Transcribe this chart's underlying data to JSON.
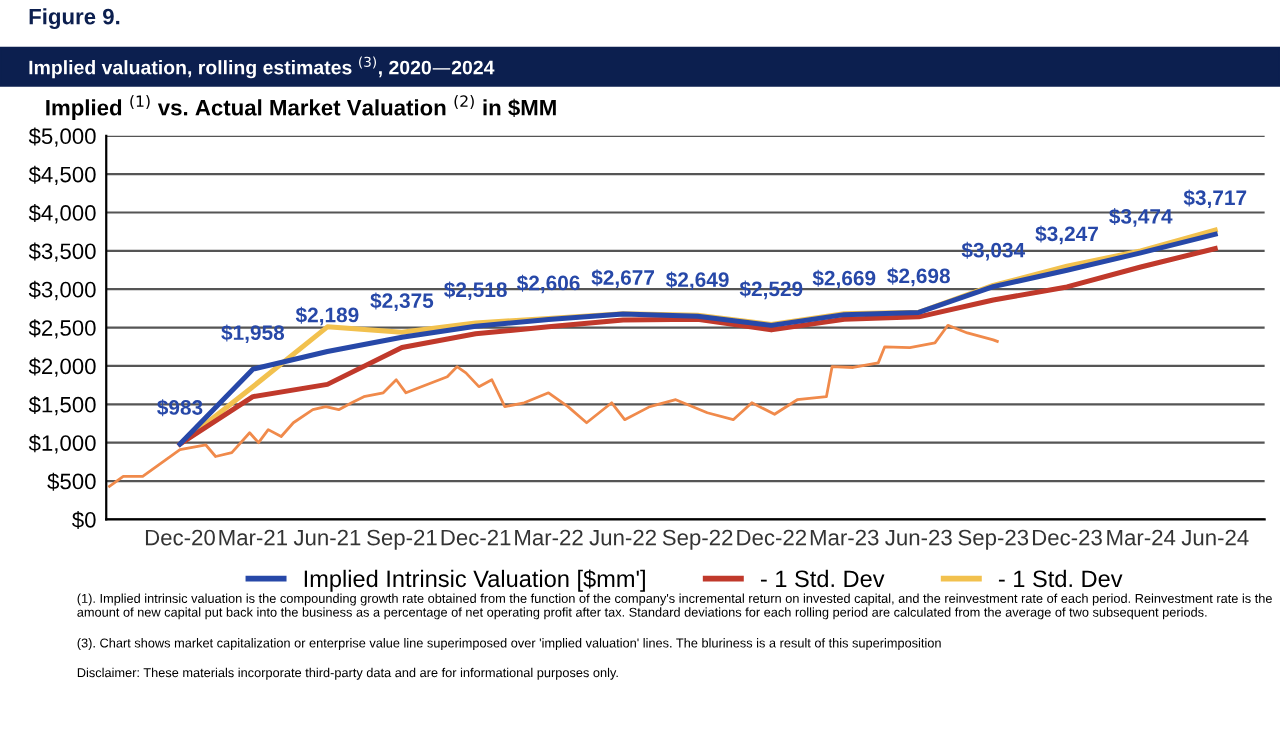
{
  "chart_data": {
    "type": "line",
    "title": "Implied valuation, rolling estimates $^{(3)}$, 2020—2024",
    "subtitle": "Implied $^{(1)}$ vs. Actual Market Valuation $^{(2)}$ in $MM",
    "annotations": [
      "Figure 9.",
      "(1). Implied intrinsic valuation is the compounding growth rate obtained from the function of the company's incremental return on invested capital, and the reinvestment rate of each period. Reinvestment rate is the amount of new capital put back into the business as a percentage of net operating profit after tax. Standard deviations for each rolling period are calculated from the average of two subsequent periods.",
      "(3). Chart shows market capitalization or enterprise value line superimposed over 'implied valuation' lines. The bluriness is a result of this superimposition",
      "Disclaimer: These materials incorporate third-party data and are for informational purposes only."
    ],
    "x": [
      "2020-12-15",
      "2021-03-15",
      "2021-06-15",
      "2021-09-15",
      "2021-12-15",
      "2022-03-15",
      "2022-06-15",
      "2022-09-15",
      "2022-12-15",
      "2023-03-15",
      "2023-06-15",
      "2023-09-15",
      "2023-12-15",
      "2024-03-15",
      "2024-06-15"
    ],
    "series": [
      {
        "name": "- 1 Std. Dev",
        "color": "#f2c14e",
        "values": [
          983,
          1730,
          2510,
          2440,
          2560,
          2620,
          2680,
          2660,
          2540,
          2680,
          2700,
          3050,
          3300,
          3500,
          3770
        ]
      },
      {
        "name": "- 1 Std. Dev",
        "color": "#c0392b",
        "values": [
          983,
          1600,
          1760,
          2240,
          2420,
          2510,
          2600,
          2610,
          2470,
          2610,
          2640,
          2860,
          3030,
          3290,
          3530
        ]
      },
      {
        "color": "#f08a4b",
        "x": [
          "2020-09-19",
          "2020-10-06",
          "2020-10-30",
          "2020-12-15",
          "2021-01-16",
          "2021-01-28",
          "2021-02-17",
          "2021-03-11",
          "2021-03-22",
          "2021-04-03",
          "2021-04-19",
          "2021-05-04",
          "2021-05-28",
          "2021-06-13",
          "2021-06-29",
          "2021-07-15",
          "2021-07-30",
          "2021-08-23",
          "2021-09-08",
          "2021-09-20",
          "2021-10-09",
          "2021-11-10",
          "2021-11-22",
          "2021-12-03",
          "2021-12-19",
          "2022-01-04",
          "2022-01-20",
          "2022-02-13",
          "2022-03-15",
          "2022-04-08",
          "2022-05-01",
          "2022-06-01",
          "2022-06-17",
          "2022-07-18",
          "2022-08-19",
          "2022-09-27",
          "2022-10-29",
          "2022-11-21",
          "2022-12-19",
          "2023-01-16",
          "2023-02-21",
          "2023-02-28",
          "2023-03-26",
          "2023-04-26",
          "2023-05-04",
          "2023-06-04",
          "2023-07-05",
          "2023-07-21",
          "2023-08-14",
          "2023-09-15",
          "2023-09-20"
        ],
        "values": [
          430,
          560,
          560,
          910,
          970,
          820,
          870,
          1130,
          1000,
          1170,
          1080,
          1260,
          1430,
          1470,
          1430,
          1520,
          1600,
          1650,
          1820,
          1650,
          1730,
          1860,
          1990,
          1910,
          1730,
          1820,
          1470,
          1520,
          1650,
          1470,
          1260,
          1520,
          1300,
          1470,
          1560,
          1390,
          1300,
          1520,
          1370,
          1560,
          1600,
          1990,
          1980,
          2040,
          2250,
          2240,
          2300,
          2530,
          2430,
          2340,
          2320
        ]
      },
      {
        "name": "Implied Intrinsic Valuation [$mm']",
        "color": "#2748a8",
        "values": [
          983,
          1958,
          2189,
          2375,
          2518,
          2606,
          2677,
          2649,
          2529,
          2669,
          2698,
          3034,
          3247,
          3474,
          3717
        ],
        "value_labels": [
          "$983",
          "$1,958",
          "$2,189",
          "$2,375",
          "$2,518",
          "$2,606",
          "$2,677",
          "$2,649",
          "$2,529",
          "$2,669",
          "$2,698",
          "$3,034",
          "$3,247",
          "$3,474",
          "$3,717"
        ]
      }
    ],
    "xlim": [
      "2020-09-15",
      "2024-08-15"
    ],
    "xticks": [
      {
        "value": "2020-12-15",
        "label": "Dec-20"
      },
      {
        "value": "2021-03-15",
        "label": "Mar-21"
      },
      {
        "value": "2021-06-15",
        "label": "Jun-21"
      },
      {
        "value": "2021-09-15",
        "label": "Sep-21"
      },
      {
        "value": "2021-12-15",
        "label": "Dec-21"
      },
      {
        "value": "2022-03-15",
        "label": "Mar-22"
      },
      {
        "value": "2022-06-15",
        "label": "Jun-22"
      },
      {
        "value": "2022-09-15",
        "label": "Sep-22"
      },
      {
        "value": "2022-12-15",
        "label": "Dec-22"
      },
      {
        "value": "2023-03-15",
        "label": "Mar-23"
      },
      {
        "value": "2023-06-15",
        "label": "Jun-23"
      },
      {
        "value": "2023-09-15",
        "label": "Sep-23"
      },
      {
        "value": "2023-12-15",
        "label": "Dec-23"
      },
      {
        "value": "2024-03-15",
        "label": "Mar-24"
      },
      {
        "value": "2024-06-15",
        "label": "Jun-24"
      }
    ],
    "ylim": [
      0,
      5000
    ],
    "yticks": [
      {
        "value": 0,
        "label": "$0"
      },
      {
        "value": 500,
        "label": "$500"
      },
      {
        "value": 1000,
        "label": "$1,000"
      },
      {
        "value": 1500,
        "label": "$1,500"
      },
      {
        "value": 2000,
        "label": "$2,000"
      },
      {
        "value": 2500,
        "label": "$2,500"
      },
      {
        "value": 3000,
        "label": "$3,000"
      },
      {
        "value": 3500,
        "label": "$3,500"
      },
      {
        "value": 4000,
        "label": "$4,000"
      },
      {
        "value": 4500,
        "label": "$4,500"
      },
      {
        "value": 5000,
        "label": "$5,000"
      }
    ],
    "grid": "y",
    "legend": "bottom"
  }
}
